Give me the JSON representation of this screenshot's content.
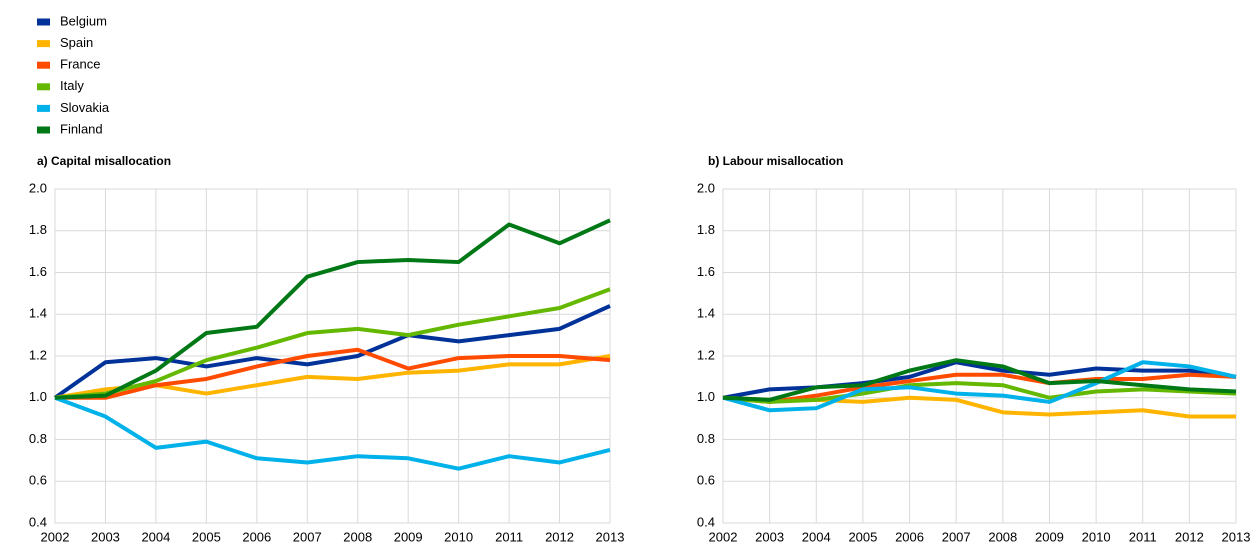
{
  "legend": {
    "series": [
      {
        "name": "Belgium",
        "color": "#003299"
      },
      {
        "name": "Spain",
        "color": "#ffb400"
      },
      {
        "name": "France",
        "color": "#ff4b00"
      },
      {
        "name": "Italy",
        "color": "#65b800"
      },
      {
        "name": "Slovakia",
        "color": "#00b1ea"
      },
      {
        "name": "Finland",
        "color": "#007816"
      }
    ]
  },
  "chart_data": [
    {
      "type": "line",
      "title": "a) Capital misallocation",
      "x": [
        2002,
        2003,
        2004,
        2005,
        2006,
        2007,
        2008,
        2009,
        2010,
        2011,
        2012,
        2013
      ],
      "xlim": [
        2002,
        2013
      ],
      "xticks": [
        2002,
        2003,
        2004,
        2005,
        2006,
        2007,
        2008,
        2009,
        2010,
        2011,
        2012,
        2013
      ],
      "ylim": [
        0.4,
        2.0
      ],
      "yticks": [
        0.4,
        0.6,
        0.8,
        {
          "value": 1,
          "label": "1.0"
        },
        1.2,
        1.4,
        1.6,
        1.8,
        {
          "value": 2,
          "label": "2.0"
        }
      ],
      "grid": true,
      "series": [
        {
          "values": [
            1.0,
            1.17,
            1.19,
            1.15,
            1.19,
            1.16,
            1.2,
            1.3,
            1.27,
            1.3,
            1.33,
            1.44
          ]
        },
        {
          "values": [
            1.0,
            1.04,
            1.06,
            1.02,
            1.06,
            1.1,
            1.09,
            1.12,
            1.13,
            1.16,
            1.16,
            1.2
          ]
        },
        {
          "values": [
            1.0,
            1.0,
            1.06,
            1.09,
            1.15,
            1.2,
            1.23,
            1.14,
            1.19,
            1.2,
            1.2,
            1.18
          ]
        },
        {
          "values": [
            1.0,
            1.02,
            1.08,
            1.18,
            1.24,
            1.31,
            1.33,
            1.3,
            1.35,
            1.39,
            1.43,
            1.52
          ]
        },
        {
          "values": [
            1.0,
            0.91,
            0.76,
            0.79,
            0.71,
            0.69,
            0.72,
            0.71,
            0.66,
            0.72,
            0.69,
            0.75
          ]
        },
        {
          "values": [
            1.0,
            1.01,
            1.13,
            1.31,
            1.34,
            1.58,
            1.65,
            1.66,
            1.65,
            1.83,
            1.74,
            1.85
          ]
        }
      ]
    },
    {
      "type": "line",
      "title": "b) Labour misallocation",
      "x": [
        2002,
        2003,
        2004,
        2005,
        2006,
        2007,
        2008,
        2009,
        2010,
        2011,
        2012,
        2013
      ],
      "xlim": [
        2002,
        2013
      ],
      "xticks": [
        2002,
        2003,
        2004,
        2005,
        2006,
        2007,
        2008,
        2009,
        2010,
        2011,
        2012,
        2013
      ],
      "ylim": [
        0.4,
        2.0
      ],
      "yticks": [
        0.4,
        0.6,
        0.8,
        {
          "value": 1,
          "label": "1.0"
        },
        1.2,
        1.4,
        1.6,
        1.8,
        {
          "value": 2,
          "label": "2.0"
        }
      ],
      "grid": true,
      "series": [
        {
          "values": [
            1.0,
            1.04,
            1.05,
            1.07,
            1.1,
            1.17,
            1.13,
            1.11,
            1.14,
            1.13,
            1.13,
            1.1
          ]
        },
        {
          "values": [
            1.0,
            0.99,
            0.99,
            0.98,
            1.0,
            0.99,
            0.93,
            0.92,
            0.93,
            0.94,
            0.91,
            0.91
          ]
        },
        {
          "values": [
            1.0,
            0.98,
            1.01,
            1.05,
            1.08,
            1.11,
            1.11,
            1.07,
            1.09,
            1.09,
            1.11,
            1.1
          ]
        },
        {
          "values": [
            1.0,
            0.98,
            0.99,
            1.02,
            1.06,
            1.07,
            1.06,
            1.0,
            1.03,
            1.04,
            1.03,
            1.02
          ]
        },
        {
          "values": [
            1.0,
            0.94,
            0.95,
            1.04,
            1.05,
            1.02,
            1.01,
            0.98,
            1.07,
            1.17,
            1.15,
            1.1
          ]
        },
        {
          "values": [
            1.0,
            0.99,
            1.05,
            1.06,
            1.13,
            1.18,
            1.15,
            1.07,
            1.08,
            1.06,
            1.04,
            1.03
          ]
        }
      ]
    }
  ]
}
